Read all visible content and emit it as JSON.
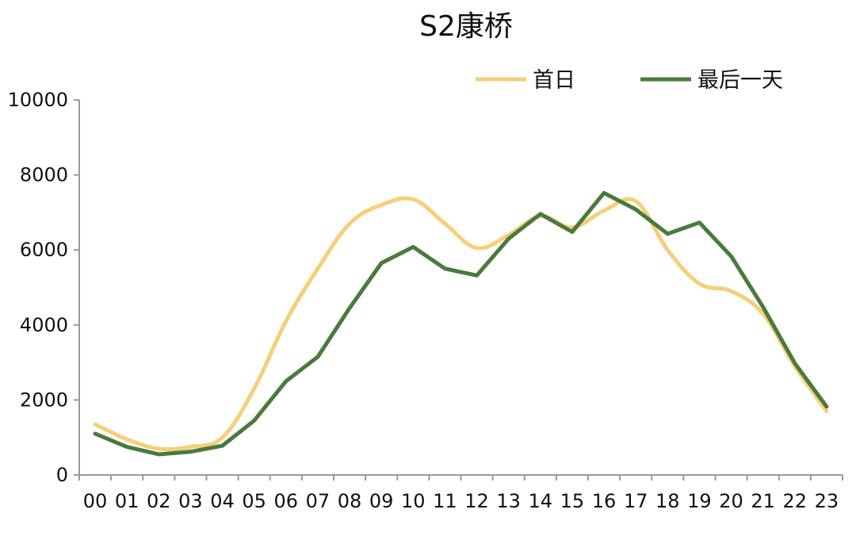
{
  "chart_data": {
    "type": "line",
    "title": "S2康桥",
    "xlabel": "",
    "ylabel": "",
    "categories": [
      "00",
      "01",
      "02",
      "03",
      "04",
      "05",
      "06",
      "07",
      "08",
      "09",
      "10",
      "11",
      "12",
      "13",
      "14",
      "15",
      "16",
      "17",
      "18",
      "19",
      "20",
      "21",
      "22",
      "23"
    ],
    "ylim": [
      0,
      10000
    ],
    "yticks": [
      0,
      2000,
      4000,
      6000,
      8000,
      10000
    ],
    "grid": false,
    "legend_position": "top-right",
    "series": [
      {
        "name": "首日",
        "color": "#f5cf7a",
        "smooth": true,
        "values": [
          1350,
          950,
          700,
          750,
          1000,
          2300,
          4100,
          5500,
          6700,
          7200,
          7350,
          6700,
          6050,
          6400,
          6900,
          6600,
          7050,
          7300,
          6000,
          5100,
          4900,
          4300,
          2900,
          1700
        ]
      },
      {
        "name": "最后一天",
        "color": "#4a7a3c",
        "smooth": false,
        "values": [
          1100,
          750,
          550,
          620,
          780,
          1450,
          2500,
          3150,
          4450,
          5650,
          6080,
          5500,
          5320,
          6300,
          6960,
          6480,
          7520,
          7080,
          6430,
          6730,
          5830,
          4480,
          2980,
          1820
        ]
      }
    ]
  }
}
